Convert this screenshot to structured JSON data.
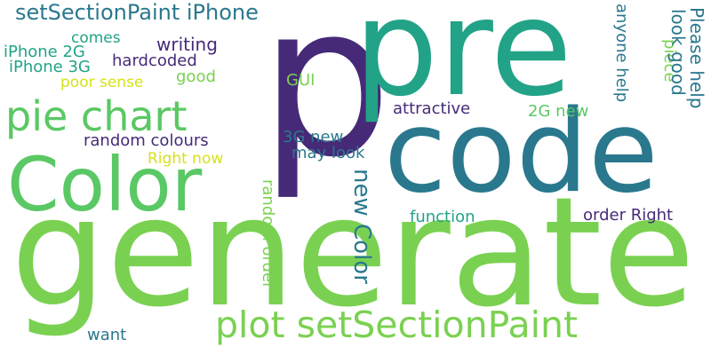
{
  "word_cloud": {
    "palette": {
      "dark_purple": "#462A78",
      "teal_blue": "#2A788E",
      "teal": "#22A387",
      "green": "#5AC864",
      "light_green": "#7AD151",
      "yellow": "#D6E21A"
    },
    "words": {
      "p": "p",
      "pre": "pre",
      "code": "code",
      "generate": "generate",
      "color": "Color",
      "pie_chart": "pie chart",
      "plot_setsectionpaint": "plot setSectionPaint",
      "setsectionpaint_iphone": "setSectionPaint iPhone",
      "comes": "comes",
      "writing": "writing",
      "iphone_2g": "iPhone 2G",
      "iphone_3g": "iPhone 3G",
      "hardcoded": "hardcoded",
      "poor_sense": "poor sense",
      "good": "good",
      "gui": "GUI",
      "random_colours": "random colours",
      "right_now": "Right now",
      "three_g_new": "3G new",
      "may_look": "may look",
      "attractive": "attractive",
      "two_g_new": "2G new",
      "anyone_help": "anyone help",
      "piece": "piece",
      "look_good": "look good",
      "please_help": "Please help",
      "new_color": "new Color",
      "random_order": "random order",
      "function": "function",
      "order_right": "order Right",
      "want": "want"
    }
  }
}
